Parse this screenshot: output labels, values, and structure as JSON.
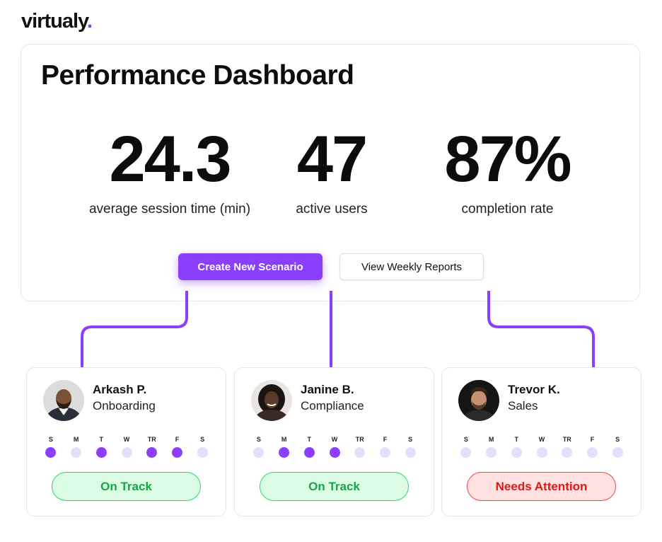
{
  "brand": {
    "name": "virtualy",
    "dot": ".",
    "accent": "#8a3ffc"
  },
  "dashboard": {
    "title": "Performance Dashboard",
    "stats": [
      {
        "value": "24.3",
        "label": "average session time (min)"
      },
      {
        "value": "47",
        "label": "active users"
      },
      {
        "value": "87%",
        "label": "completion rate"
      }
    ],
    "primary_button": "Create New Scenario",
    "secondary_button": "View Weekly Reports"
  },
  "day_labels": [
    "S",
    "M",
    "T",
    "W",
    "TR",
    "F",
    "S"
  ],
  "users": [
    {
      "name": "Arkash P.",
      "role": "Onboarding",
      "avatar": "avatar-photo",
      "activity": [
        true,
        false,
        true,
        false,
        true,
        true,
        false
      ],
      "status": "On Track",
      "status_type": "good"
    },
    {
      "name": "Janine B.",
      "role": "Compliance",
      "avatar": "avatar-photo",
      "activity": [
        false,
        true,
        true,
        true,
        false,
        false,
        false
      ],
      "status": "On Track",
      "status_type": "good"
    },
    {
      "name": "Trevor K.",
      "role": "Sales",
      "avatar": "avatar-photo",
      "activity": [
        false,
        false,
        false,
        false,
        false,
        false,
        false
      ],
      "status": "Needs Attention",
      "status_type": "bad"
    }
  ],
  "colors": {
    "active_dot": "#8a3ffc",
    "inactive_dot": "#e8ddfb",
    "good_bg": "#dcfbe5",
    "good_text": "#1ba34a",
    "bad_bg": "#ffe1e1",
    "bad_text": "#e01818"
  }
}
